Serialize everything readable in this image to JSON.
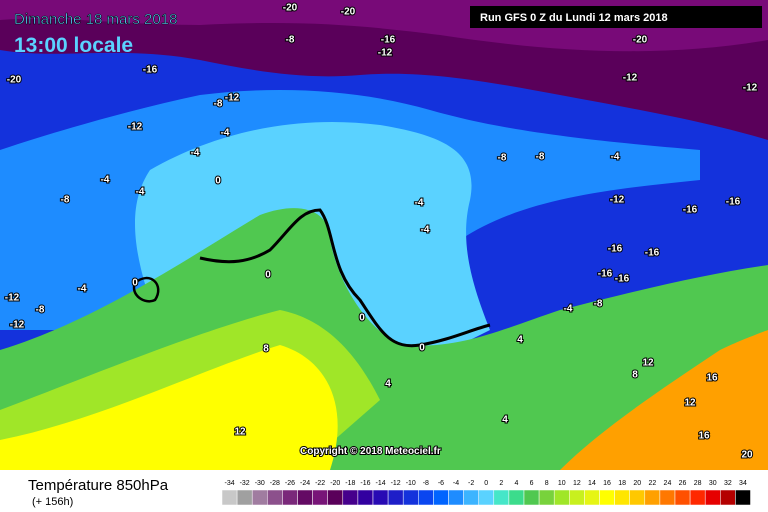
{
  "header": {
    "date": "Dimanche 18 mars 2018",
    "time": "13:00 locale",
    "run": "Run GFS 0 Z du Lundi 12 mars 2018"
  },
  "copyright": "Copyright © 2018 Meteociel.fr",
  "footer": {
    "title": "Température 850hPa",
    "lead": "(+ 156h)"
  },
  "legend": {
    "values": [
      -34,
      -32,
      -30,
      -28,
      -26,
      -24,
      -22,
      -20,
      -18,
      -16,
      -14,
      -12,
      -10,
      -8,
      -6,
      -4,
      -2,
      0,
      2,
      4,
      6,
      8,
      10,
      12,
      14,
      16,
      18,
      20,
      22,
      24,
      26,
      28,
      30,
      32,
      34
    ],
    "colors": [
      "#c8c8c8",
      "#a0a0a0",
      "#a07ca0",
      "#8c508c",
      "#7a287a",
      "#640a64",
      "#781478",
      "#5a005a",
      "#46008c",
      "#3200a0",
      "#280ab4",
      "#1e1ec8",
      "#1432dc",
      "#0a46f0",
      "#0064ff",
      "#1e8cff",
      "#3cb4ff",
      "#5ad2ff",
      "#46e6c8",
      "#3cdc8c",
      "#50c850",
      "#78d23c",
      "#a0e628",
      "#c8f01e",
      "#e6f514",
      "#ffff00",
      "#ffe600",
      "#ffc800",
      "#ffa000",
      "#ff7800",
      "#ff5000",
      "#ff2800",
      "#e60000",
      "#b40000",
      "#000000"
    ]
  },
  "contour_labels": [
    -20,
    -16,
    -12,
    -8,
    -4,
    -4,
    -4,
    -4,
    0,
    0,
    0,
    -12,
    -12,
    -8,
    -4,
    -16,
    -12,
    -8,
    -20,
    -20,
    -20,
    -12,
    -12,
    -8,
    -8,
    -4,
    -12,
    -16,
    -16,
    -16,
    -16,
    -16,
    -16,
    -8,
    -4,
    0,
    0,
    4,
    4,
    8,
    12,
    12,
    16,
    16,
    20,
    12,
    4,
    8,
    -4,
    -4,
    -8,
    -12
  ]
}
